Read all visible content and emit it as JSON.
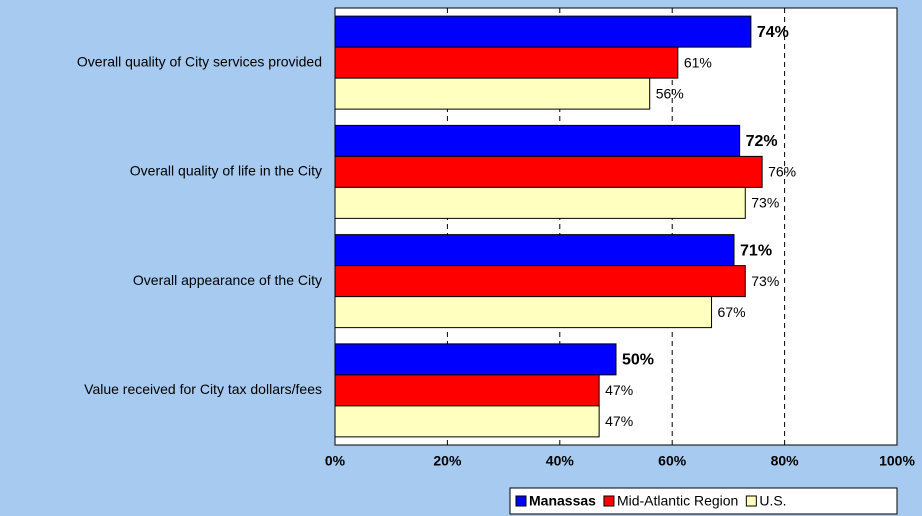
{
  "chart_data": {
    "type": "hbar",
    "categories": [
      "Overall quality of City services provided",
      "Overall quality of life in the City",
      "Overall appearance of the City",
      "Value received for City tax dollars/fees"
    ],
    "series": [
      {
        "name": "Manassas",
        "color": "#0000ff",
        "values": [
          74,
          72,
          71,
          50
        ],
        "value_labels": [
          "74%",
          "72%",
          "71%",
          "50%"
        ]
      },
      {
        "name": "Mid-Atlantic Region",
        "color": "#ff0000",
        "values": [
          61,
          76,
          73,
          47
        ],
        "value_labels": [
          "61%",
          "76%",
          "73%",
          "47%"
        ]
      },
      {
        "name": "U.S.",
        "color": "#ffffc0",
        "values": [
          56,
          73,
          67,
          47
        ],
        "value_labels": [
          "56%",
          "73%",
          "67%",
          "47%"
        ]
      }
    ],
    "xlim": [
      0,
      100
    ],
    "xticks": [
      {
        "value": 0,
        "label": "0%"
      },
      {
        "value": 20,
        "label": "20%"
      },
      {
        "value": 40,
        "label": "40%"
      },
      {
        "value": 60,
        "label": "60%"
      },
      {
        "value": 80,
        "label": "80%"
      },
      {
        "value": 100,
        "label": "100%"
      }
    ],
    "grid": true,
    "legend": "bottom-right"
  }
}
